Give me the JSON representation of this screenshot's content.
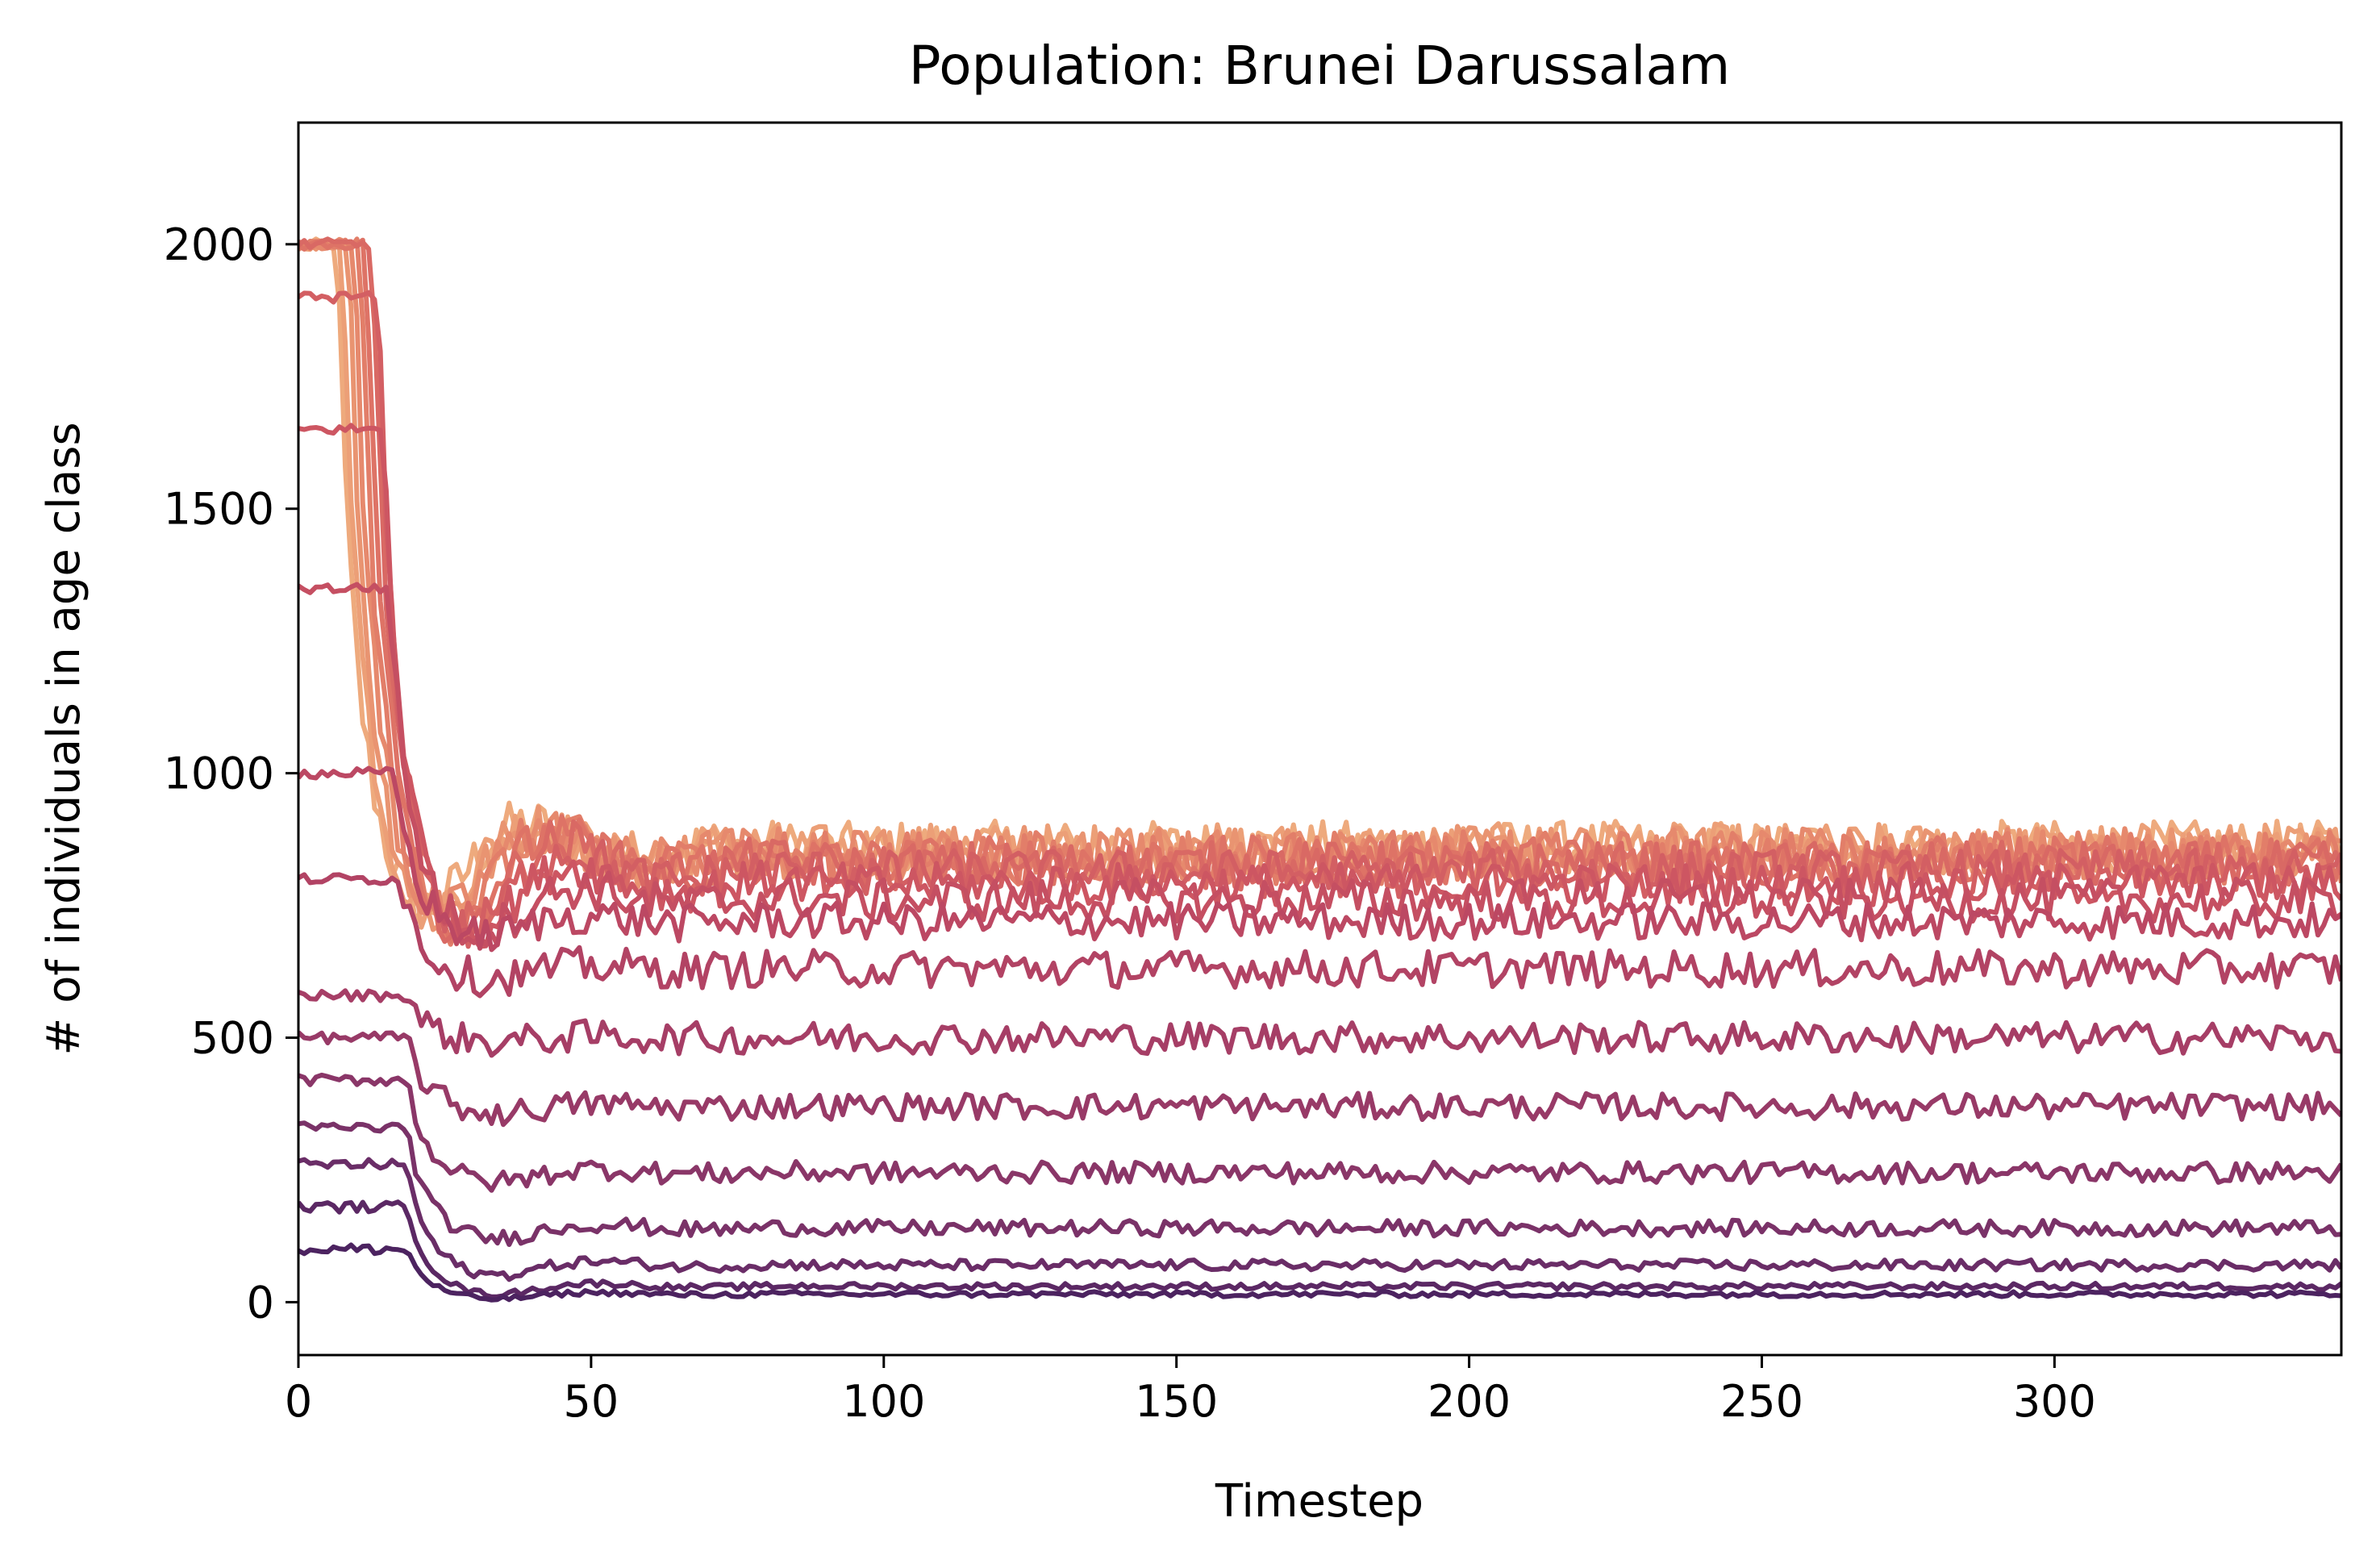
{
  "chart_data": {
    "type": "line",
    "title": "Population: Brunei Darussalam",
    "xlabel": "Timestep",
    "ylabel": "# of individuals in age class",
    "xlim": [
      0,
      349
    ],
    "ylim": [
      -100,
      2230
    ],
    "xticks": [
      0,
      50,
      100,
      150,
      200,
      250,
      300
    ],
    "yticks": [
      0,
      500,
      1000,
      1500,
      2000
    ],
    "xtick_labels": [
      "0",
      "50",
      "100",
      "150",
      "200",
      "250",
      "300"
    ],
    "ytick_labels": [
      "0",
      "500",
      "1000",
      "1500",
      "2000"
    ],
    "grid": false,
    "legend": "none",
    "colormap": "flare (light orange to dark purple)",
    "n_timesteps": 349,
    "series_description_note": "",
    "series": [
      {
        "baseline": 2000,
        "steady": 860,
        "noise": 50,
        "lag": 0,
        "color": "#eeaa7d"
      },
      {
        "baseline": 2000,
        "steady": 855,
        "noise": 50,
        "lag": 1,
        "color": "#ec9f77"
      },
      {
        "baseline": 2000,
        "steady": 850,
        "noise": 50,
        "lag": 2,
        "color": "#e99471"
      },
      {
        "baseline": 2000,
        "steady": 845,
        "noise": 50,
        "lag": 3,
        "color": "#e6896d"
      },
      {
        "baseline": 2000,
        "steady": 840,
        "noise": 50,
        "lag": 4,
        "color": "#e27e69"
      },
      {
        "baseline": 2000,
        "steady": 835,
        "noise": 45,
        "lag": 5,
        "color": "#de7366"
      },
      {
        "baseline": 2000,
        "steady": 825,
        "noise": 45,
        "lag": 6,
        "color": "#d96964"
      },
      {
        "baseline": 1900,
        "steady": 810,
        "noise": 45,
        "lag": 7,
        "color": "#d35f63"
      },
      {
        "baseline": 1650,
        "steady": 790,
        "noise": 40,
        "lag": 8,
        "color": "#cd5662"
      },
      {
        "baseline": 1350,
        "steady": 760,
        "noise": 40,
        "lag": 9,
        "color": "#c54f62"
      },
      {
        "baseline": 1000,
        "steady": 720,
        "noise": 35,
        "lag": 10,
        "color": "#bc4863"
      },
      {
        "baseline": 800,
        "steady": 630,
        "noise": 35,
        "lag": 11,
        "color": "#b24364"
      },
      {
        "baseline": 580,
        "steady": 500,
        "noise": 30,
        "lag": 12,
        "color": "#a63e66"
      },
      {
        "baseline": 500,
        "steady": 370,
        "noise": 25,
        "lag": 12,
        "color": "#983a67"
      },
      {
        "baseline": 420,
        "steady": 245,
        "noise": 20,
        "lag": 12,
        "color": "#8a3668"
      },
      {
        "baseline": 330,
        "steady": 140,
        "noise": 15,
        "lag": 12,
        "color": "#7a3268"
      },
      {
        "baseline": 260,
        "steady": 70,
        "noise": 10,
        "lag": 12,
        "color": "#6a2d67"
      },
      {
        "baseline": 180,
        "steady": 30,
        "noise": 6,
        "lag": 12,
        "color": "#5b2864"
      },
      {
        "baseline": 100,
        "steady": 15,
        "noise": 5,
        "lag": 12,
        "color": "#4c2360"
      }
    ]
  }
}
